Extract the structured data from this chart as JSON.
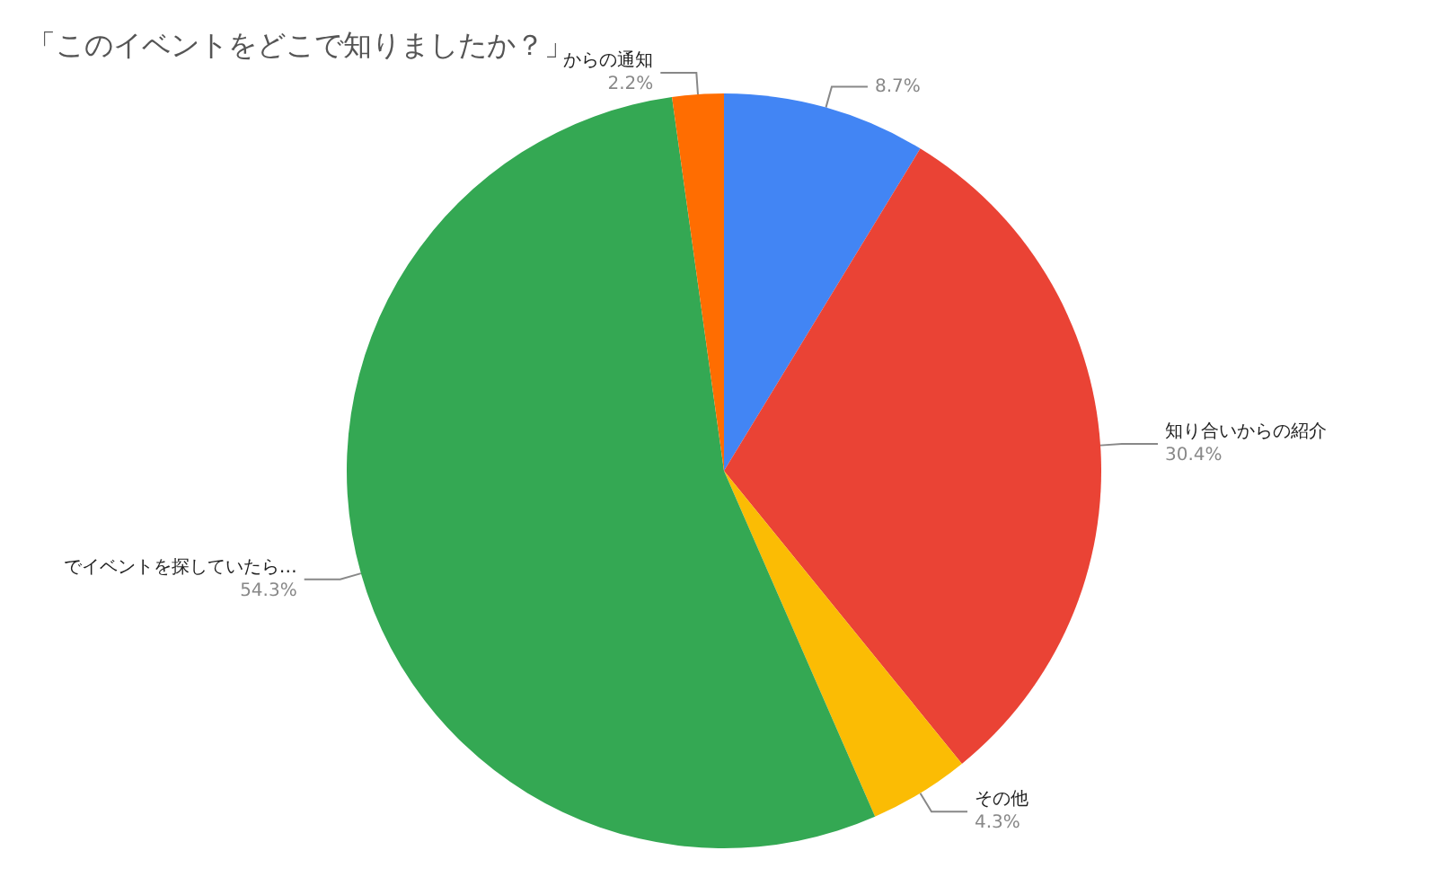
{
  "chart_data": {
    "type": "pie",
    "title": "「このイベントをどこで知りましたか？」",
    "categories": [
      null,
      "知り合いからの紹介",
      "その他",
      "でイベントを探していたら…",
      "からの通知"
    ],
    "values": [
      8.7,
      30.4,
      4.3,
      54.3,
      2.2
    ],
    "value_labels": [
      "8.7%",
      "30.4%",
      "4.3%",
      "54.3%",
      "2.2%"
    ],
    "colors": [
      "#4285f4",
      "#ea4335",
      "#fbbc04",
      "#34a853",
      "#ff6d01"
    ],
    "legend": false
  }
}
